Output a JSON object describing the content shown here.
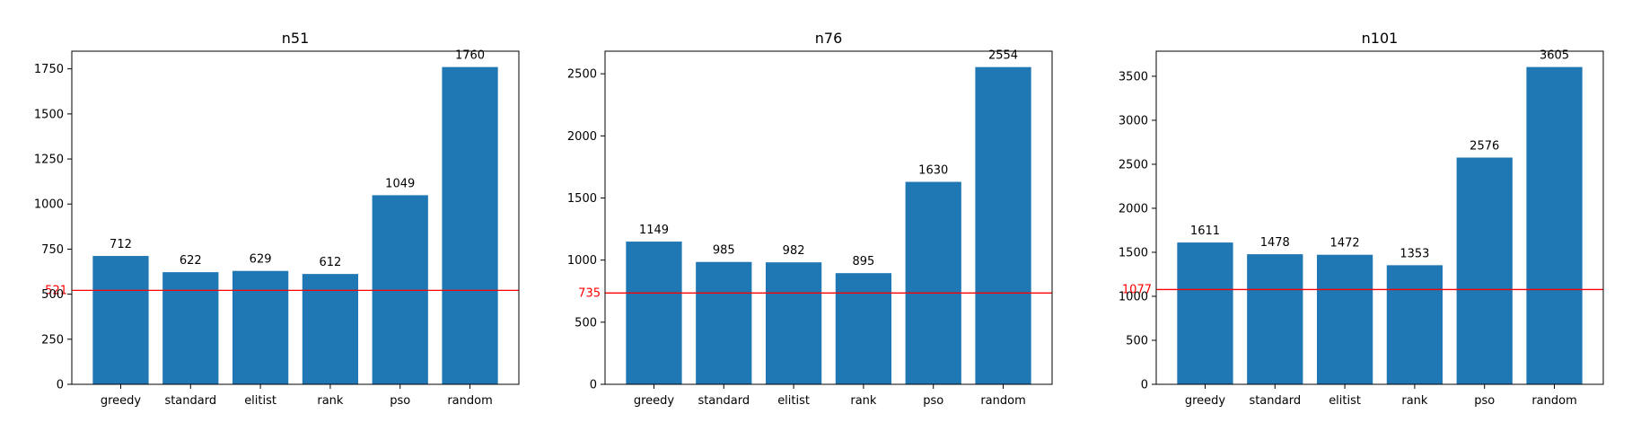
{
  "chart_data": [
    {
      "type": "bar",
      "title": "n51",
      "xlabel": "",
      "ylabel": "",
      "categories": [
        "greedy",
        "standard",
        "elitist",
        "rank",
        "pso",
        "random"
      ],
      "values": [
        712,
        622,
        629,
        612,
        1049,
        1760
      ],
      "value_labels": [
        "712",
        "622",
        "629",
        "612",
        "1049",
        "1760"
      ],
      "ylim": [
        0,
        1848
      ],
      "yticks": [
        0,
        250,
        500,
        750,
        1000,
        1250,
        1500,
        1750
      ],
      "reference_line": {
        "value": 521,
        "label": "521",
        "color": "#ff0000"
      },
      "bar_color": "#1f77b4",
      "grid": false,
      "legend": "none"
    },
    {
      "type": "bar",
      "title": "n76",
      "xlabel": "",
      "ylabel": "",
      "categories": [
        "greedy",
        "standard",
        "elitist",
        "rank",
        "pso",
        "random"
      ],
      "values": [
        1149,
        985,
        982,
        895,
        1630,
        2554
      ],
      "value_labels": [
        "1149",
        "985",
        "982",
        "895",
        "1630",
        "2554"
      ],
      "ylim": [
        0,
        2682
      ],
      "yticks": [
        0,
        500,
        1000,
        1500,
        2000,
        2500
      ],
      "reference_line": {
        "value": 735,
        "label": "735",
        "color": "#ff0000"
      },
      "bar_color": "#1f77b4",
      "grid": false,
      "legend": "none"
    },
    {
      "type": "bar",
      "title": "n101",
      "xlabel": "",
      "ylabel": "",
      "categories": [
        "greedy",
        "standard",
        "elitist",
        "rank",
        "pso",
        "random"
      ],
      "values": [
        1611,
        1478,
        1472,
        1353,
        2576,
        3605
      ],
      "value_labels": [
        "1611",
        "1478",
        "1472",
        "1353",
        "2576",
        "3605"
      ],
      "ylim": [
        0,
        3785
      ],
      "yticks": [
        0,
        500,
        1000,
        1500,
        2000,
        2500,
        3000,
        3500
      ],
      "reference_line": {
        "value": 1077,
        "label": "1077",
        "color": "#ff0000"
      },
      "bar_color": "#1f77b4",
      "grid": false,
      "legend": "none"
    }
  ]
}
